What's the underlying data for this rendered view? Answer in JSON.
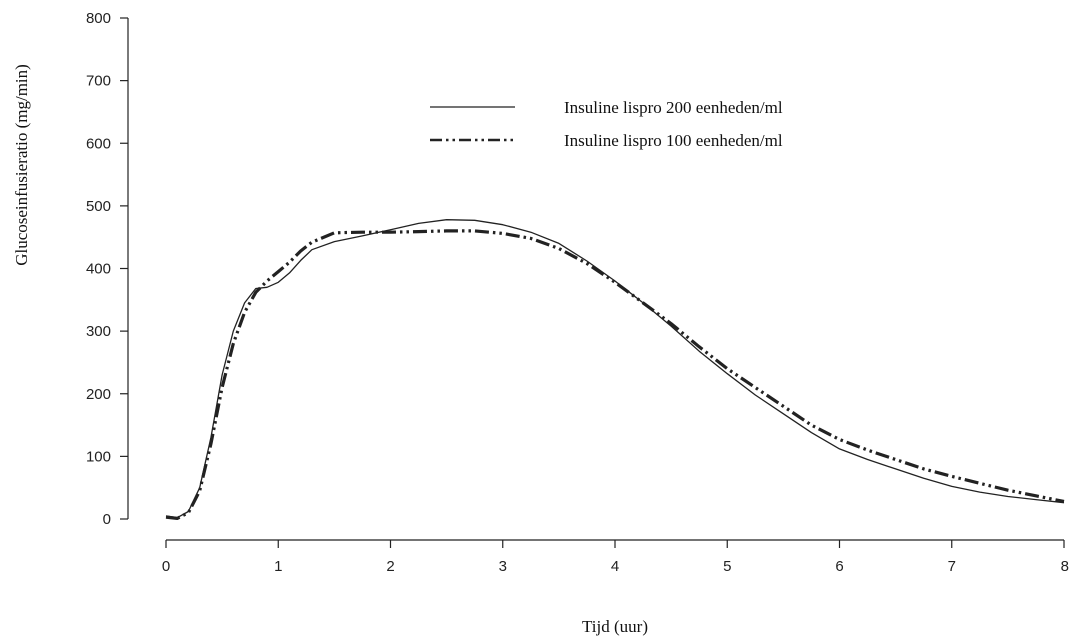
{
  "chart_data": {
    "type": "line",
    "xlabel": "Tijd (uur)",
    "ylabel": "Glucoseinfusieratio (mg/min)",
    "xlim": [
      0,
      8
    ],
    "ylim": [
      0,
      800
    ],
    "x_ticks": [
      "0",
      "1",
      "2",
      "3",
      "4",
      "5",
      "6",
      "7",
      "8"
    ],
    "y_ticks": [
      "0",
      "100",
      "200",
      "300",
      "400",
      "500",
      "600",
      "700",
      "800"
    ],
    "grid": false,
    "legend_position": "top-center",
    "series": [
      {
        "name": "Insuline lispro 200 eenheden/ml",
        "style": "solid",
        "color": "#222222",
        "points": [
          [
            0,
            5
          ],
          [
            0.1,
            2
          ],
          [
            0.2,
            12
          ],
          [
            0.3,
            50
          ],
          [
            0.4,
            130
          ],
          [
            0.5,
            230
          ],
          [
            0.6,
            300
          ],
          [
            0.7,
            345
          ],
          [
            0.8,
            368
          ],
          [
            0.9,
            370
          ],
          [
            1.0,
            378
          ],
          [
            1.1,
            393
          ],
          [
            1.2,
            413
          ],
          [
            1.3,
            430
          ],
          [
            1.5,
            443
          ],
          [
            1.75,
            452
          ],
          [
            2.0,
            462
          ],
          [
            2.25,
            472
          ],
          [
            2.5,
            478
          ],
          [
            2.75,
            477
          ],
          [
            3.0,
            470
          ],
          [
            3.25,
            458
          ],
          [
            3.5,
            440
          ],
          [
            3.75,
            412
          ],
          [
            4.0,
            380
          ],
          [
            4.25,
            345
          ],
          [
            4.5,
            308
          ],
          [
            4.75,
            268
          ],
          [
            5.0,
            232
          ],
          [
            5.25,
            198
          ],
          [
            5.5,
            168
          ],
          [
            5.75,
            138
          ],
          [
            6.0,
            112
          ],
          [
            6.25,
            95
          ],
          [
            6.5,
            80
          ],
          [
            6.75,
            65
          ],
          [
            7.0,
            52
          ],
          [
            7.25,
            43
          ],
          [
            7.5,
            36
          ],
          [
            7.75,
            31
          ],
          [
            8.0,
            26
          ]
        ]
      },
      {
        "name": "Insuline lispro 100 eenheden/ml",
        "style": "dash-dot-dot",
        "color": "#222222",
        "points": [
          [
            0,
            3
          ],
          [
            0.1,
            1
          ],
          [
            0.2,
            10
          ],
          [
            0.3,
            45
          ],
          [
            0.4,
            120
          ],
          [
            0.5,
            210
          ],
          [
            0.6,
            280
          ],
          [
            0.7,
            330
          ],
          [
            0.8,
            362
          ],
          [
            0.9,
            380
          ],
          [
            1.0,
            395
          ],
          [
            1.1,
            410
          ],
          [
            1.2,
            428
          ],
          [
            1.3,
            442
          ],
          [
            1.5,
            457
          ],
          [
            1.75,
            458
          ],
          [
            2.0,
            458
          ],
          [
            2.25,
            459
          ],
          [
            2.5,
            460
          ],
          [
            2.75,
            460
          ],
          [
            3.0,
            456
          ],
          [
            3.25,
            448
          ],
          [
            3.5,
            432
          ],
          [
            3.75,
            408
          ],
          [
            4.0,
            378
          ],
          [
            4.25,
            345
          ],
          [
            4.5,
            312
          ],
          [
            4.75,
            275
          ],
          [
            5.0,
            240
          ],
          [
            5.25,
            210
          ],
          [
            5.5,
            180
          ],
          [
            5.75,
            150
          ],
          [
            6.0,
            127
          ],
          [
            6.25,
            110
          ],
          [
            6.5,
            95
          ],
          [
            6.75,
            80
          ],
          [
            7.0,
            68
          ],
          [
            7.25,
            57
          ],
          [
            7.5,
            46
          ],
          [
            7.75,
            37
          ],
          [
            8.0,
            28
          ]
        ]
      }
    ]
  }
}
